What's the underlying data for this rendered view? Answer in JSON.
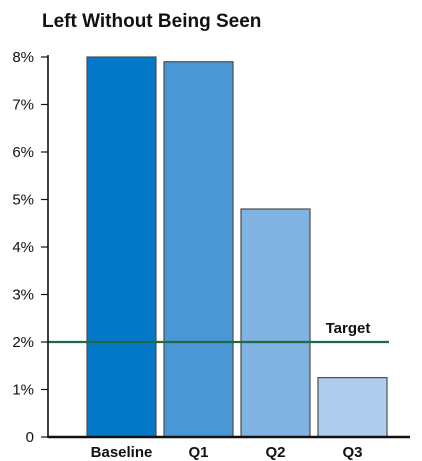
{
  "chart_data": {
    "type": "bar",
    "title": "Left Without Being Seen",
    "categories": [
      "Baseline",
      "Q1",
      "Q2",
      "Q3"
    ],
    "values": [
      8.0,
      7.9,
      4.8,
      1.25
    ],
    "ylim": [
      0,
      8
    ],
    "yticks": [
      {
        "value": 0,
        "label": "0"
      },
      {
        "value": 1,
        "label": "1%"
      },
      {
        "value": 2,
        "label": "2%"
      },
      {
        "value": 3,
        "label": "3%"
      },
      {
        "value": 4,
        "label": "4%"
      },
      {
        "value": 5,
        "label": "5%"
      },
      {
        "value": 6,
        "label": "6%"
      },
      {
        "value": 7,
        "label": "7%"
      },
      {
        "value": 8,
        "label": "8%"
      }
    ],
    "target": {
      "label": "Target",
      "value": 2,
      "color": "#1e6b45"
    },
    "bar_colors": [
      "#0479c8",
      "#4a97d6",
      "#80b2e2",
      "#aecdec"
    ],
    "grid": false,
    "legend": "none"
  }
}
